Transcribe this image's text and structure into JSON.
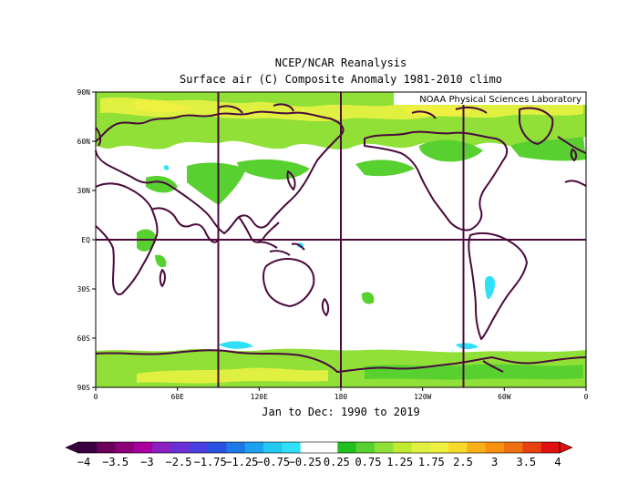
{
  "title": "NCEP/NCAR Reanalysis",
  "subtitle": "Surface air (C) Composite Anomaly 1981-2010 climo",
  "credit": "NOAA Physical Sciences Laboratory",
  "period": "Jan to Dec: 1990 to 2019",
  "map": {
    "projection": "equirectangular",
    "lon_range": [
      0,
      360
    ],
    "lat_range": [
      -90,
      90
    ],
    "lat_ticks": [
      "90N",
      "60N",
      "30N",
      "EQ",
      "30S",
      "60S",
      "90S"
    ],
    "lon_ticks": [
      "0",
      "60E",
      "120E",
      "180",
      "120W",
      "60W",
      "0"
    ],
    "grid_lines": [
      "90E",
      "180",
      "90W",
      "EQ"
    ]
  },
  "colorbar": {
    "labels": [
      "-4",
      "-3.5",
      "-3",
      "-2.5",
      "-1.75",
      "-1.25",
      "-0.75",
      "-0.25",
      "0.25",
      "0.75",
      "1.25",
      "1.75",
      "2.5",
      "3",
      "3.5",
      "4"
    ],
    "colors": [
      "#3a0040",
      "#6a005a",
      "#8c0078",
      "#a800a0",
      "#8a20c0",
      "#6a30d8",
      "#4a40e0",
      "#2a50e0",
      "#1e78e8",
      "#1ea0f0",
      "#22c8f0",
      "#30e0f8",
      "#ffffff",
      "#ffffff",
      "#20c020",
      "#58d030",
      "#90e038",
      "#c0ea30",
      "#e0f040",
      "#f0f040",
      "#f8d828",
      "#f8b018",
      "#f89010",
      "#f07010",
      "#e84010",
      "#e01010"
    ]
  },
  "style": {
    "land_outline": "#4a0a3c",
    "positive_anomaly": "#90e038",
    "strong_positive": "#f0f040",
    "negative_anomaly": "#30e0f8"
  }
}
